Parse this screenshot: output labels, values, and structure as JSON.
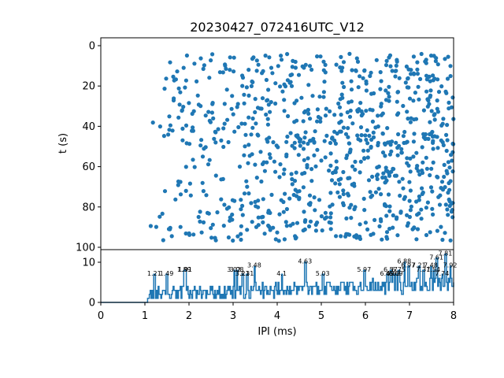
{
  "chart_data": {
    "title": "20230427_072416UTC_V12",
    "xlabel": "IPI (ms)",
    "xlim": [
      0,
      8
    ],
    "x_ticks": [
      0,
      1,
      2,
      3,
      4,
      5,
      6,
      7,
      8
    ],
    "colors": {
      "series": "#1f77b4"
    },
    "panels": [
      {
        "type": "scatter",
        "ylabel": "t (s)",
        "ylim": [
          0,
          100
        ],
        "y_inverted": true,
        "y_ticks": [
          0,
          20,
          40,
          60,
          80,
          100
        ],
        "x_range_of_points": [
          1.07,
          8.0
        ],
        "t_range_of_points": [
          4,
          97
        ],
        "approx_point_count": 900
      },
      {
        "type": "line",
        "ylim": [
          0,
          13
        ],
        "y_ticks": [
          0,
          10
        ],
        "peak_labels": [
          {
            "x": 1.21,
            "y": 6.5,
            "label": "1.21"
          },
          {
            "x": 1.49,
            "y": 6.5,
            "label": "1.49"
          },
          {
            "x": 1.89,
            "y": 7.5,
            "label": "1.89"
          },
          {
            "x": 1.91,
            "y": 7.5,
            "label": "1.91"
          },
          {
            "x": 3.02,
            "y": 7.5,
            "label": "3.02"
          },
          {
            "x": 3.08,
            "y": 7.5,
            "label": "3.08"
          },
          {
            "x": 3.21,
            "y": 6.5,
            "label": "3.21"
          },
          {
            "x": 3.31,
            "y": 6.5,
            "label": "3.31"
          },
          {
            "x": 3.48,
            "y": 8.5,
            "label": "3.48"
          },
          {
            "x": 4.1,
            "y": 6.5,
            "label": "4.1"
          },
          {
            "x": 4.63,
            "y": 9.5,
            "label": "4.63"
          },
          {
            "x": 5.03,
            "y": 6.5,
            "label": "5.03"
          },
          {
            "x": 5.97,
            "y": 7.5,
            "label": "5.97"
          },
          {
            "x": 6.49,
            "y": 6.5,
            "label": "6.49"
          },
          {
            "x": 6.57,
            "y": 7.5,
            "label": "6.57"
          },
          {
            "x": 6.63,
            "y": 6.5,
            "label": "6.63"
          },
          {
            "x": 6.69,
            "y": 6.5,
            "label": "6.69"
          },
          {
            "x": 6.75,
            "y": 7.5,
            "label": "6.75"
          },
          {
            "x": 6.88,
            "y": 9.5,
            "label": "6.88"
          },
          {
            "x": 6.97,
            "y": 8.5,
            "label": "6.97"
          },
          {
            "x": 7.21,
            "y": 8.5,
            "label": "7.21"
          },
          {
            "x": 7.31,
            "y": 7.5,
            "label": "7.31"
          },
          {
            "x": 7.48,
            "y": 8.5,
            "label": "7.48"
          },
          {
            "x": 7.54,
            "y": 7.5,
            "label": "7.54"
          },
          {
            "x": 7.61,
            "y": 10.5,
            "label": "7.61"
          },
          {
            "x": 7.74,
            "y": 6.5,
            "label": "7.74"
          },
          {
            "x": 7.81,
            "y": 11.5,
            "label": "7.81"
          },
          {
            "x": 7.92,
            "y": 8.5,
            "label": "7.92"
          }
        ]
      }
    ]
  }
}
